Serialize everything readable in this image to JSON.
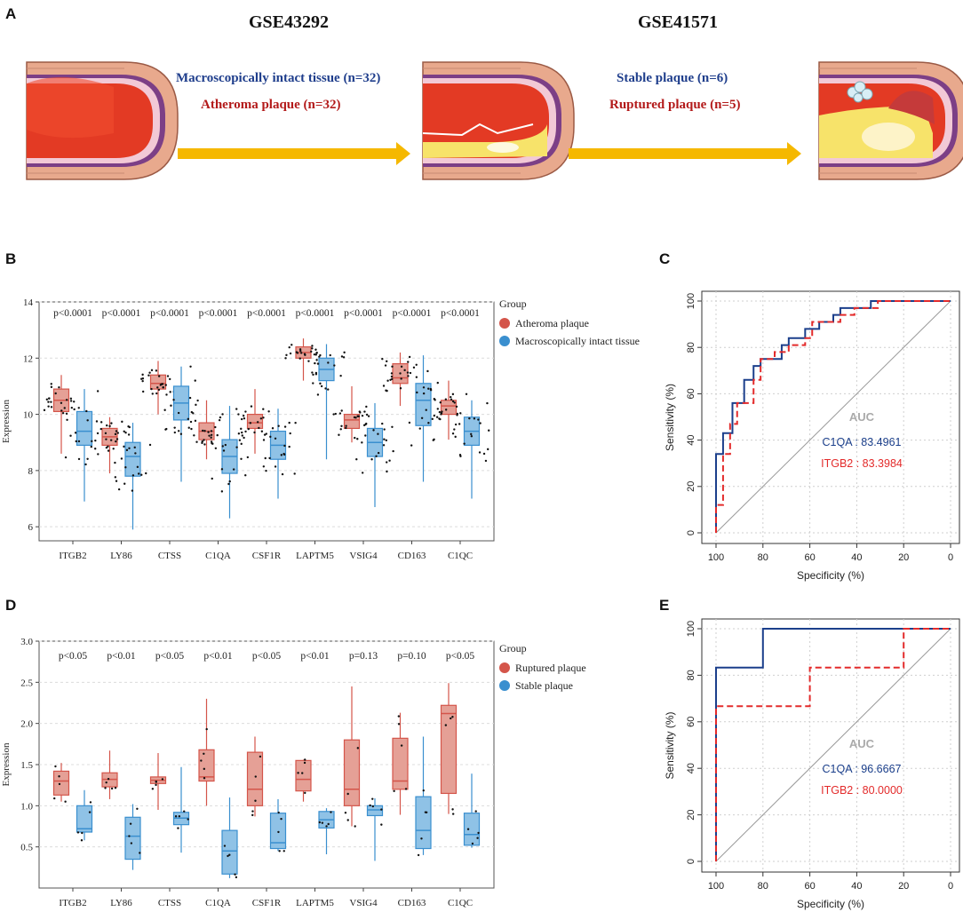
{
  "panel_letters": {
    "a": "A",
    "b": "B",
    "c": "C",
    "d": "D",
    "e": "E"
  },
  "panel_a": {
    "dataset1": "GSE43292",
    "dataset2": "GSE41571",
    "group1_label": "Macroscopically intact tissue (n=32)",
    "group2_label": "Atheroma plaque (n=32)",
    "group3_label": "Stable plaque (n=6)",
    "group4_label": "Ruptured plaque (n=5)",
    "colors": {
      "arrow": "#f5b800",
      "vessel_wall": "#e8a98d",
      "lumen": "#e33a24"
    }
  },
  "chart_data": [
    {
      "id": "B",
      "type": "box",
      "ylabel": "Expression",
      "ylim": [
        5.5,
        14
      ],
      "yticks": [
        6,
        8,
        10,
        12,
        14
      ],
      "legend_title": "Group",
      "legend": [
        {
          "name": "Atheroma plaque",
          "color": "#d4554a"
        },
        {
          "name": "Macroscopically intact tissue",
          "color": "#3a8fcf"
        }
      ],
      "categories": [
        "ITGB2",
        "LY86",
        "CTSS",
        "C1QA",
        "CSF1R",
        "LAPTM5",
        "VSIG4",
        "CD163",
        "C1QC"
      ],
      "pvalues": [
        "p<0.0001",
        "p<0.0001",
        "p<0.0001",
        "p<0.0001",
        "p<0.0001",
        "p<0.0001",
        "p<0.0001",
        "p<0.0001",
        "p<0.0001"
      ],
      "series": [
        {
          "name": "Atheroma plaque",
          "boxes": [
            [
              8.6,
              10.1,
              10.5,
              10.9,
              11.4
            ],
            [
              7.9,
              8.9,
              9.2,
              9.5,
              9.9
            ],
            [
              10.0,
              10.9,
              11.1,
              11.4,
              11.9
            ],
            [
              8.4,
              9.1,
              9.4,
              9.7,
              10.5
            ],
            [
              8.6,
              9.5,
              9.7,
              10.0,
              10.9
            ],
            [
              11.2,
              12.0,
              12.2,
              12.4,
              12.7
            ],
            [
              9.0,
              9.5,
              9.8,
              10.0,
              11.0
            ],
            [
              10.3,
              11.1,
              11.3,
              11.8,
              12.2
            ],
            [
              9.1,
              10.0,
              10.3,
              10.5,
              11.2
            ]
          ]
        },
        {
          "name": "Macroscopically intact tissue",
          "boxes": [
            [
              6.9,
              8.9,
              9.4,
              10.1,
              10.9
            ],
            [
              5.9,
              7.8,
              8.5,
              9.0,
              9.7
            ],
            [
              7.6,
              9.8,
              10.4,
              11.0,
              11.7
            ],
            [
              6.3,
              7.9,
              8.5,
              9.1,
              10.3
            ],
            [
              7.0,
              8.4,
              8.9,
              9.4,
              10.2
            ],
            [
              8.4,
              11.2,
              11.6,
              12.0,
              12.5
            ],
            [
              6.7,
              8.5,
              9.0,
              9.5,
              10.4
            ],
            [
              7.6,
              9.6,
              10.5,
              11.1,
              12.1
            ],
            [
              7.0,
              8.9,
              9.4,
              9.9,
              10.5
            ]
          ]
        }
      ]
    },
    {
      "id": "C",
      "type": "roc",
      "xlabel": "Specificity (%)",
      "ylabel": "Sensitivity (%)",
      "ticks": [
        0,
        20,
        40,
        60,
        80,
        100
      ],
      "auc_title": "AUC",
      "series": [
        {
          "name": "C1QA",
          "label": "C1QA : 83.4961",
          "color": "#1b3f8b",
          "dash": false,
          "points": [
            [
              100,
              0
            ],
            [
              100,
              34
            ],
            [
              97,
              34
            ],
            [
              97,
              43
            ],
            [
              93,
              43
            ],
            [
              93,
              56
            ],
            [
              88,
              56
            ],
            [
              88,
              66
            ],
            [
              84,
              66
            ],
            [
              84,
              72
            ],
            [
              81,
              72
            ],
            [
              81,
              75
            ],
            [
              72,
              75
            ],
            [
              72,
              81
            ],
            [
              69,
              81
            ],
            [
              69,
              84
            ],
            [
              62,
              84
            ],
            [
              62,
              88
            ],
            [
              56,
              88
            ],
            [
              56,
              91
            ],
            [
              50,
              91
            ],
            [
              50,
              94
            ],
            [
              47,
              94
            ],
            [
              47,
              97
            ],
            [
              34,
              97
            ],
            [
              34,
              100
            ],
            [
              0,
              100
            ]
          ]
        },
        {
          "name": "ITGB2",
          "label": "ITGB2 : 83.3984",
          "color": "#e32b2b",
          "dash": true,
          "points": [
            [
              100,
              0
            ],
            [
              100,
              12
            ],
            [
              97,
              12
            ],
            [
              97,
              34
            ],
            [
              94,
              34
            ],
            [
              94,
              47
            ],
            [
              91,
              47
            ],
            [
              91,
              56
            ],
            [
              84,
              56
            ],
            [
              84,
              66
            ],
            [
              81,
              66
            ],
            [
              81,
              75
            ],
            [
              75,
              75
            ],
            [
              75,
              78
            ],
            [
              69,
              78
            ],
            [
              69,
              81
            ],
            [
              62,
              81
            ],
            [
              62,
              84
            ],
            [
              59,
              84
            ],
            [
              59,
              91
            ],
            [
              47,
              91
            ],
            [
              47,
              94
            ],
            [
              41,
              94
            ],
            [
              41,
              97
            ],
            [
              31,
              97
            ],
            [
              31,
              100
            ],
            [
              0,
              100
            ]
          ]
        }
      ]
    },
    {
      "id": "D",
      "type": "box",
      "ylabel": "Expression",
      "ylim": [
        0,
        3.0
      ],
      "yticks": [
        0.5,
        1.0,
        1.5,
        2.0,
        2.5,
        3.0
      ],
      "ytick_labels": [
        "0.5",
        "1.0",
        "1.5",
        "2.0",
        "2.5",
        "3.0"
      ],
      "legend_title": "Group",
      "legend": [
        {
          "name": "Ruptured plaque",
          "color": "#d4554a"
        },
        {
          "name": "Stable plaque",
          "color": "#3a8fcf"
        }
      ],
      "categories": [
        "ITGB2",
        "LY86",
        "CTSS",
        "C1QA",
        "CSF1R",
        "LAPTM5",
        "VSIG4",
        "CD163",
        "C1QC"
      ],
      "pvalues": [
        "p<0.05",
        "p<0.01",
        "p<0.05",
        "p<0.01",
        "p<0.05",
        "p<0.01",
        "p=0.13",
        "p=0.10",
        "p<0.05"
      ],
      "series": [
        {
          "name": "Ruptured plaque",
          "boxes": [
            [
              1.05,
              1.13,
              1.3,
              1.42,
              1.52
            ],
            [
              1.08,
              1.23,
              1.32,
              1.4,
              1.67
            ],
            [
              0.95,
              1.27,
              1.31,
              1.35,
              1.64
            ],
            [
              1.0,
              1.3,
              1.35,
              1.68,
              2.3
            ],
            [
              0.87,
              1.0,
              1.2,
              1.65,
              1.84
            ],
            [
              1.05,
              1.18,
              1.32,
              1.55,
              1.56
            ],
            [
              0.75,
              1.0,
              1.2,
              1.8,
              2.45
            ],
            [
              0.89,
              1.2,
              1.3,
              1.82,
              2.13
            ],
            [
              0.9,
              1.15,
              2.12,
              2.22,
              2.49
            ]
          ]
        },
        {
          "name": "Stable plaque",
          "boxes": [
            [
              0.58,
              0.68,
              0.72,
              1.0,
              1.19
            ],
            [
              0.22,
              0.35,
              0.63,
              0.86,
              1.02
            ],
            [
              0.43,
              0.77,
              0.85,
              0.92,
              1.47
            ],
            [
              0.12,
              0.17,
              0.45,
              0.7,
              1.1
            ],
            [
              0.45,
              0.48,
              0.55,
              0.91,
              1.08
            ],
            [
              0.41,
              0.73,
              0.83,
              0.93,
              0.97
            ],
            [
              0.33,
              0.88,
              0.95,
              1.0,
              1.09
            ],
            [
              0.4,
              0.48,
              0.7,
              1.11,
              1.84
            ],
            [
              0.49,
              0.52,
              0.65,
              0.91,
              1.39
            ]
          ]
        }
      ]
    },
    {
      "id": "E",
      "type": "roc",
      "xlabel": "Specificity (%)",
      "ylabel": "Sensitivity (%)",
      "ticks": [
        0,
        20,
        40,
        60,
        80,
        100
      ],
      "auc_title": "AUC",
      "series": [
        {
          "name": "C1QA",
          "label": "C1QA : 96.6667",
          "color": "#1b3f8b",
          "dash": false,
          "points": [
            [
              100,
              0
            ],
            [
              100,
              83.3
            ],
            [
              80,
              83.3
            ],
            [
              80,
              100
            ],
            [
              0,
              100
            ]
          ]
        },
        {
          "name": "ITGB2",
          "label": "ITGB2 : 80.0000",
          "color": "#e32b2b",
          "dash": true,
          "points": [
            [
              100,
              0
            ],
            [
              100,
              66.7
            ],
            [
              60,
              66.7
            ],
            [
              60,
              83.3
            ],
            [
              20,
              83.3
            ],
            [
              20,
              100
            ],
            [
              0,
              100
            ]
          ]
        }
      ]
    }
  ]
}
